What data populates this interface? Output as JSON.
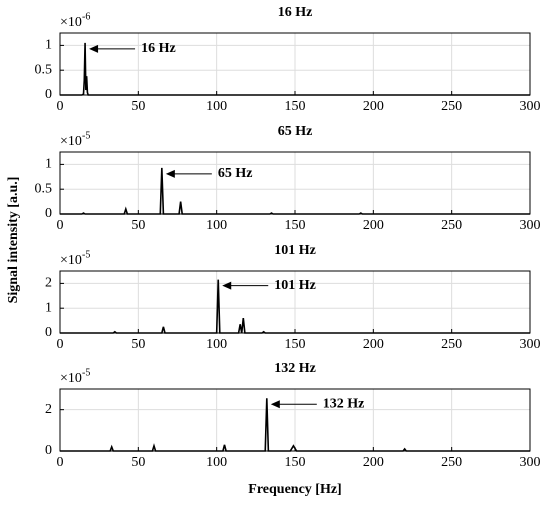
{
  "ylabel": "Signal intensity [a.u.]",
  "xlabel": "Frequency [Hz]",
  "chart_data": [
    {
      "type": "line",
      "title": "16 Hz",
      "scale_base": "×10",
      "scale_exponent": "-6",
      "annotation": "16 Hz",
      "color": "#000000",
      "grid": true,
      "xlim": [
        0,
        300
      ],
      "xticks": [
        0,
        50,
        100,
        150,
        200,
        250,
        300
      ],
      "ylim": [
        0,
        1.25
      ],
      "yticks": [
        0,
        0.5,
        1
      ],
      "x": [
        0,
        14,
        15,
        15.5,
        16,
        16.5,
        17,
        17.5,
        18,
        300
      ],
      "values": [
        0,
        0,
        0.02,
        0.3,
        1.05,
        0.1,
        0.38,
        0.05,
        0,
        0
      ]
    },
    {
      "type": "line",
      "title": "65 Hz",
      "scale_base": "×10",
      "scale_exponent": "-5",
      "annotation": "65 Hz",
      "color": "#000000",
      "grid": true,
      "xlim": [
        0,
        300
      ],
      "xticks": [
        0,
        50,
        100,
        150,
        200,
        250,
        300
      ],
      "ylim": [
        0,
        1.25
      ],
      "yticks": [
        0,
        0.5,
        1
      ],
      "x": [
        0,
        14,
        15,
        16,
        41,
        42,
        43,
        64,
        65,
        66,
        76,
        77,
        78,
        134,
        135,
        136,
        191,
        192,
        193,
        300
      ],
      "values": [
        0,
        0,
        0.02,
        0,
        0,
        0.1,
        0,
        0,
        0.93,
        0,
        0,
        0.25,
        0,
        0,
        0.02,
        0,
        0,
        0.02,
        0,
        0
      ]
    },
    {
      "type": "line",
      "title": "101 Hz",
      "scale_base": "×10",
      "scale_exponent": "-5",
      "annotation": "101 Hz",
      "color": "#000000",
      "grid": true,
      "xlim": [
        0,
        300
      ],
      "xticks": [
        0,
        50,
        100,
        150,
        200,
        250,
        300
      ],
      "ylim": [
        0,
        2.5
      ],
      "yticks": [
        0,
        1,
        2
      ],
      "x": [
        0,
        34,
        35,
        36,
        65,
        66,
        67,
        100,
        101,
        102,
        114,
        115,
        116,
        117,
        118,
        129,
        130,
        131,
        300
      ],
      "values": [
        0,
        0,
        0.05,
        0,
        0,
        0.25,
        0,
        0,
        2.15,
        0,
        0,
        0.35,
        0,
        0.6,
        0,
        0,
        0.05,
        0,
        0
      ]
    },
    {
      "type": "line",
      "title": "132 Hz",
      "scale_base": "×10",
      "scale_exponent": "-5",
      "annotation": "132 Hz",
      "color": "#000000",
      "grid": true,
      "xlim": [
        0,
        300
      ],
      "xticks": [
        0,
        50,
        100,
        150,
        200,
        250,
        300
      ],
      "ylim": [
        0,
        3
      ],
      "yticks": [
        0,
        2
      ],
      "x": [
        0,
        32,
        33,
        34,
        59,
        60,
        61,
        104,
        105,
        106,
        131,
        132,
        133,
        147,
        149,
        151,
        219,
        220,
        221,
        300
      ],
      "values": [
        0,
        0,
        0.2,
        0,
        0,
        0.25,
        0,
        0,
        0.3,
        0,
        0,
        2.55,
        0,
        0,
        0.25,
        0,
        0,
        0.1,
        0,
        0
      ]
    }
  ]
}
